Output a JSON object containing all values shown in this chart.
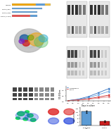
{
  "background": "#ffffff",
  "panel_A": {
    "rows": [
      {
        "label": "Human",
        "segments": [
          {
            "color": "#f0a500",
            "start": 0.0,
            "end": 0.62
          },
          {
            "color": "#5b9bd5",
            "start": 0.62,
            "end": 0.85
          },
          {
            "color": "#f0c040",
            "start": 0.85,
            "end": 1.0
          }
        ]
      },
      {
        "label": "RPA2 (327)",
        "segments": [
          {
            "color": "#5b9bd5",
            "start": 0.0,
            "end": 0.78
          }
        ]
      },
      {
        "label": "RPA2 (275)",
        "segments": [
          {
            "color": "#5b9bd5",
            "start": 0.0,
            "end": 0.65
          }
        ]
      },
      {
        "label": "RPA2 (1-175)",
        "segments": [
          {
            "color": "#e05050",
            "start": 0.0,
            "end": 0.48
          },
          {
            "color": "#5b9bd5",
            "start": 0.48,
            "end": 0.65
          }
        ]
      }
    ],
    "xlim": [
      0,
      1.15
    ],
    "bar_height": 0.55
  },
  "panel_E_lines": {
    "x": [
      0,
      1,
      2,
      3,
      4
    ],
    "series": [
      {
        "label": "Scrambled",
        "color": "#3070c0",
        "values": [
          0.05,
          0.18,
          0.42,
          0.78,
          1.15
        ],
        "style": "-",
        "marker": "o"
      },
      {
        "label": "Scrambled",
        "color": "#60a0e0",
        "values": [
          0.05,
          0.15,
          0.32,
          0.6,
          0.9
        ],
        "style": "-",
        "marker": "o"
      },
      {
        "label": "shRPA2",
        "color": "#cc2020",
        "values": [
          0.05,
          0.12,
          0.22,
          0.38,
          0.55
        ],
        "style": "-",
        "marker": "o"
      },
      {
        "label": "shRPA2",
        "color": "#e08080",
        "values": [
          0.05,
          0.1,
          0.18,
          0.28,
          0.4
        ],
        "style": "-",
        "marker": "o"
      }
    ],
    "xlabel": "Days in culture",
    "ylabel": "OD 450nm",
    "ylim": [
      0,
      1.4
    ],
    "xlim": [
      -0.2,
      4.2
    ]
  },
  "panel_F_bars": {
    "categories": [
      "Scrambled\nCT",
      "shRPA2"
    ],
    "values": [
      100,
      30
    ],
    "errors": [
      8,
      5
    ],
    "colors": [
      "#5b9bd5",
      "#cc2020"
    ],
    "ylabel": "Relative colony\nnumber (%)",
    "ylim": [
      0,
      130
    ]
  },
  "wb_light_bg": "#e0e0e0",
  "wb_dark_band": "#333333",
  "wb_mid_band": "#888888"
}
